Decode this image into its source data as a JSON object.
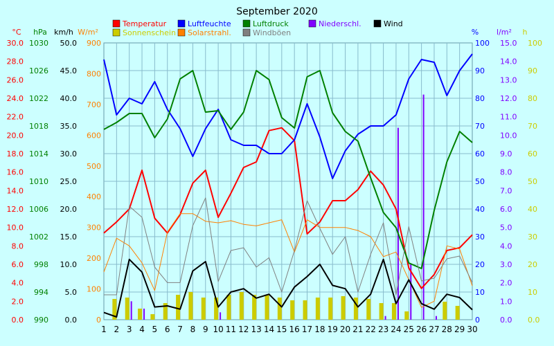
{
  "chart_data": {
    "type": "line",
    "title": "September 2020",
    "x": [
      1,
      2,
      3,
      4,
      5,
      6,
      7,
      8,
      9,
      10,
      11,
      12,
      13,
      14,
      15,
      16,
      17,
      18,
      19,
      20,
      21,
      22,
      23,
      24,
      25,
      26,
      27,
      28,
      29,
      30
    ],
    "legend": [
      {
        "name": "Temperatur",
        "color": "#ff0000"
      },
      {
        "name": "Luftfeuchte",
        "color": "#0000ff"
      },
      {
        "name": "Luftdruck",
        "color": "#008000"
      },
      {
        "name": "Niederschl.",
        "color": "#8000ff"
      },
      {
        "name": "Wind",
        "color": "#000000"
      },
      {
        "name": "Sonnenschein",
        "color": "#cccc00"
      },
      {
        "name": "Solarstrahl.",
        "color": "#ff8000"
      },
      {
        "name": "Windböen",
        "color": "#808080"
      }
    ],
    "axes": {
      "temperature": {
        "unit": "°C",
        "color": "#ff0000",
        "range": [
          0,
          30
        ],
        "ticks": [
          "0.0",
          "2.0",
          "4.0",
          "6.0",
          "8.0",
          "10.0",
          "12.0",
          "14.0",
          "16.0",
          "18.0",
          "20.0",
          "22.0",
          "24.0",
          "26.0",
          "28.0",
          "30.0"
        ]
      },
      "pressure": {
        "unit": "hPa",
        "color": "#008000",
        "range": [
          990,
          1030
        ],
        "ticks": [
          "990",
          "994",
          "998",
          "1002",
          "1006",
          "1010",
          "1014",
          "1018",
          "1022",
          "1026",
          "1030"
        ]
      },
      "wind": {
        "unit": "km/h",
        "color": "#000000",
        "range": [
          0,
          50
        ],
        "ticks": [
          "0.0",
          "5.0",
          "10.0",
          "15.0",
          "20.0",
          "25.0",
          "30.0",
          "35.0",
          "40.0",
          "45.0",
          "50.0"
        ]
      },
      "solar": {
        "unit": "W/m²",
        "color": "#ff8000",
        "range": [
          0,
          900
        ],
        "ticks": [
          "0",
          "100",
          "200",
          "300",
          "400",
          "500",
          "600",
          "700",
          "800",
          "900"
        ]
      },
      "humidity": {
        "unit": "%",
        "color": "#0000ff",
        "range": [
          0,
          100
        ],
        "ticks": [
          "0",
          "10",
          "20",
          "30",
          "40",
          "50",
          "60",
          "70",
          "80",
          "90",
          "100"
        ]
      },
      "precipitation": {
        "unit": "l/m²",
        "color": "#8000ff",
        "range": [
          0,
          15
        ],
        "ticks": [
          "0.0",
          "1.0",
          "2.0",
          "3.0",
          "4.0",
          "5.0",
          "6.0",
          "7.0",
          "8.0",
          "9.0",
          "10.0",
          "11.0",
          "12.0",
          "13.0",
          "14.0",
          "15.0"
        ]
      },
      "sunshine": {
        "unit": "h",
        "color": "#cccc00",
        "range": [
          0,
          100
        ],
        "ticks": [
          "0.0",
          "10",
          "20",
          "30",
          "40",
          "50",
          "60",
          "70",
          "80",
          "90",
          "100"
        ]
      }
    },
    "series": [
      {
        "name": "Temperatur",
        "axis": "temperature",
        "color": "#ff0000",
        "kind": "line",
        "width": 2,
        "values": [
          9.4,
          10.6,
          12.0,
          16.2,
          11.0,
          9.4,
          11.4,
          14.8,
          16.2,
          11.1,
          13.7,
          16.5,
          17.1,
          20.5,
          20.8,
          19.4,
          9.3,
          10.6,
          12.9,
          12.9,
          14.1,
          16.1,
          14.6,
          12.0,
          5.6,
          3.4,
          4.9,
          7.5,
          7.8,
          9.2
        ]
      },
      {
        "name": "Luftfeuchte",
        "axis": "humidity",
        "color": "#0000ff",
        "kind": "line",
        "width": 2,
        "values": [
          94,
          74,
          80,
          78,
          86,
          76,
          69,
          59,
          69,
          76,
          65,
          63,
          63,
          60,
          60,
          65,
          78,
          66,
          51,
          61,
          67,
          70,
          70,
          74,
          87,
          94,
          93,
          81,
          90,
          96
        ]
      },
      {
        "name": "Luftdruck",
        "axis": "pressure",
        "color": "#008000",
        "kind": "line",
        "width": 2,
        "values": [
          1017.5,
          1018.5,
          1019.8,
          1019.8,
          1016.3,
          1019.0,
          1024.8,
          1026.0,
          1020.0,
          1020.2,
          1017.5,
          1020.0,
          1026.0,
          1024.7,
          1019.2,
          1017.7,
          1025.1,
          1026.0,
          1019.9,
          1017.2,
          1015.8,
          1010.5,
          1005.5,
          1003.3,
          998.2,
          997.4,
          1005.8,
          1012.8,
          1017.2,
          1015.6
        ]
      },
      {
        "name": "Solarstrahl.",
        "axis": "solar",
        "color": "#ff8000",
        "kind": "line",
        "width": 1,
        "values": [
          155,
          265,
          240,
          185,
          95,
          285,
          345,
          345,
          320,
          315,
          322,
          310,
          305,
          315,
          325,
          220,
          325,
          300,
          300,
          300,
          290,
          270,
          205,
          220,
          130,
          40,
          60,
          240,
          230,
          110
        ]
      },
      {
        "name": "Windböen",
        "axis": "wind",
        "color": "#808080",
        "kind": "line",
        "width": 1,
        "values": [
          4.5,
          4.5,
          20.5,
          18.5,
          9.5,
          6.7,
          6.7,
          17.0,
          22.0,
          6.9,
          12.5,
          13.0,
          9.5,
          11.2,
          5.0,
          12.5,
          21.5,
          16.5,
          11.8,
          15.0,
          5.0,
          11.8,
          17.5,
          4.5,
          16.8,
          7.0,
          7.5,
          11.0,
          11.5,
          6.7
        ]
      },
      {
        "name": "Wind",
        "axis": "wind",
        "color": "#000000",
        "kind": "line",
        "width": 2,
        "values": [
          1.3,
          0.5,
          10.9,
          8.6,
          2.3,
          2.5,
          1.9,
          8.8,
          10.5,
          2.3,
          5.0,
          5.6,
          3.9,
          4.6,
          2.3,
          5.9,
          7.8,
          10.0,
          6.2,
          5.6,
          2.3,
          4.6,
          10.9,
          2.9,
          7.2,
          2.9,
          1.9,
          4.6,
          4.0,
          1.8
        ]
      },
      {
        "name": "Sonnenschein",
        "axis": "sunshine",
        "color": "#cccc00",
        "kind": "bar",
        "values": [
          0,
          7.5,
          8,
          4,
          2,
          6,
          9,
          10,
          8,
          8,
          9,
          10,
          9,
          9,
          8,
          7,
          7,
          8,
          8,
          8.5,
          8,
          7.5,
          6,
          6,
          3,
          0,
          0,
          6.5,
          5,
          0
        ]
      },
      {
        "name": "Niederschl.",
        "axis": "precipitation",
        "color": "#8000ff",
        "kind": "bar",
        "values": [
          0,
          0,
          1.0,
          0.6,
          0,
          0,
          0,
          0,
          0,
          0.4,
          0,
          0,
          0,
          0,
          0,
          0,
          0,
          0,
          0,
          0,
          0,
          0,
          0.2,
          10.4,
          3.0,
          12.2,
          0.2,
          0,
          0,
          0
        ]
      }
    ]
  }
}
